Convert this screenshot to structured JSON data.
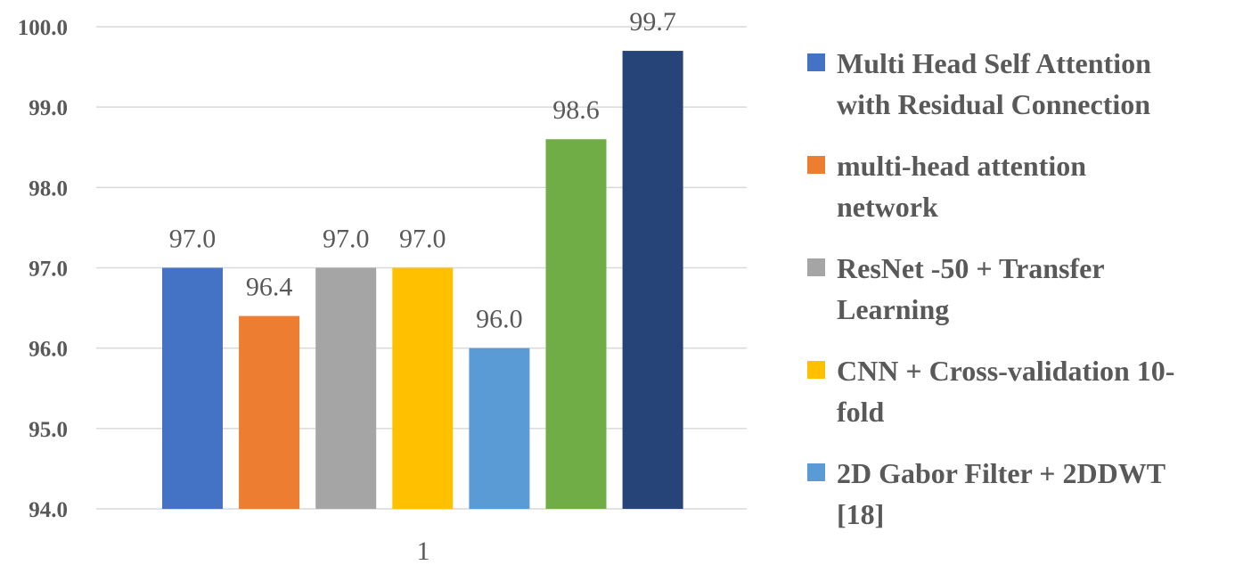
{
  "chart_data": {
    "type": "bar",
    "title": "",
    "xlabel": "",
    "ylabel": "",
    "categories": [
      "1"
    ],
    "ylim": [
      94.0,
      100.0
    ],
    "yticks": [
      "94.0",
      "95.0",
      "96.0",
      "97.0",
      "98.0",
      "99.0",
      "100.0"
    ],
    "grid": true,
    "legend_position": "right",
    "series": [
      {
        "name": "Multi Head Self Attention with Residual Connection",
        "values": [
          97.0
        ],
        "label": "97.0",
        "color": "#4472C4",
        "legend_lines": [
          "Multi Head Self Attention",
          "with Residual Connection"
        ]
      },
      {
        "name": "multi-head attention network",
        "values": [
          96.4
        ],
        "label": "96.4",
        "color": "#ED7D31",
        "legend_lines": [
          "multi-head attention",
          "network"
        ]
      },
      {
        "name": "ResNet -50 + Transfer Learning",
        "values": [
          97.0
        ],
        "label": "97.0",
        "color": "#A5A5A5",
        "legend_lines": [
          "ResNet -50 + Transfer",
          "Learning"
        ]
      },
      {
        "name": "CNN + Cross-validation 10-fold",
        "values": [
          97.0
        ],
        "label": "97.0",
        "color": "#FFC000",
        "legend_lines": [
          "CNN + Cross-validation 10-",
          "fold"
        ]
      },
      {
        "name": "2D Gabor Filter  + 2DDWT [18]",
        "values": [
          96.0
        ],
        "label": "96.0",
        "color": "#5B9BD5",
        "legend_lines": [
          "2D Gabor Filter  + 2DDWT",
          "[18]"
        ]
      },
      {
        "values": [
          98.6
        ],
        "label": "98.6",
        "color": "#70AD47"
      },
      {
        "values": [
          99.7
        ],
        "label": "99.7",
        "color": "#264478"
      }
    ]
  }
}
